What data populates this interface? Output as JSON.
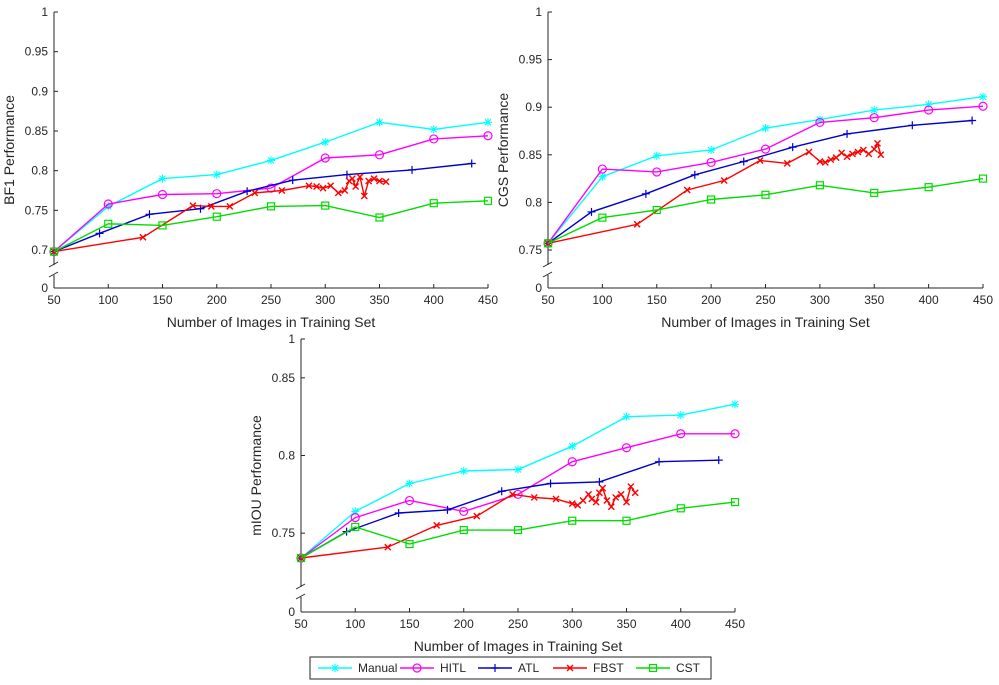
{
  "chart_data": [
    {
      "id": "bf1",
      "type": "line",
      "xlabel": "Number of Images in Training Set",
      "ylabel": "BF1 Performance",
      "xlim": [
        50,
        450
      ],
      "ylim": [
        0.7,
        1
      ],
      "axis_break": true,
      "x_ticks": [
        50,
        100,
        150,
        200,
        250,
        300,
        350,
        400,
        450
      ],
      "y_ticks": [
        0.7,
        0.75,
        0.8,
        0.85,
        0.9,
        0.95,
        1
      ],
      "y_tick_labels": [
        "0.7",
        "0.75",
        "0.8",
        "0.85",
        "0.9",
        "0.95",
        "1"
      ],
      "zero_label": "0",
      "series": [
        {
          "name": "Manual",
          "x": [
            50,
            100,
            150,
            200,
            250,
            300,
            350,
            400,
            450
          ],
          "y": [
            0.698,
            0.755,
            0.79,
            0.795,
            0.813,
            0.836,
            0.861,
            0.852,
            0.861
          ]
        },
        {
          "name": "HITL",
          "x": [
            50,
            100,
            150,
            200,
            250,
            300,
            350,
            400,
            450
          ],
          "y": [
            0.698,
            0.758,
            0.77,
            0.771,
            0.778,
            0.816,
            0.82,
            0.84,
            0.844
          ]
        },
        {
          "name": "ATL",
          "x": [
            50,
            92,
            138,
            185,
            228,
            270,
            320,
            380,
            435
          ],
          "y": [
            0.698,
            0.721,
            0.745,
            0.752,
            0.774,
            0.788,
            0.795,
            0.801,
            0.809
          ]
        },
        {
          "name": "FBST",
          "x": [
            50,
            132,
            178,
            195,
            212,
            235,
            260,
            285,
            292,
            298,
            305,
            312,
            318,
            322,
            325,
            328,
            332,
            336,
            340,
            345,
            350,
            356
          ],
          "y": [
            0.698,
            0.716,
            0.756,
            0.755,
            0.755,
            0.772,
            0.775,
            0.781,
            0.78,
            0.778,
            0.781,
            0.772,
            0.775,
            0.787,
            0.79,
            0.78,
            0.792,
            0.768,
            0.787,
            0.79,
            0.787,
            0.786
          ]
        },
        {
          "name": "CST",
          "x": [
            50,
            100,
            150,
            200,
            250,
            300,
            350,
            400,
            450
          ],
          "y": [
            0.698,
            0.733,
            0.731,
            0.742,
            0.755,
            0.756,
            0.741,
            0.759,
            0.762
          ]
        }
      ]
    },
    {
      "id": "cgs",
      "type": "line",
      "xlabel": "Number of Images in Training Set",
      "ylabel": "CGS Performance",
      "xlim": [
        50,
        450
      ],
      "ylim": [
        0.75,
        1
      ],
      "axis_break": true,
      "x_ticks": [
        50,
        100,
        150,
        200,
        250,
        300,
        350,
        400,
        450
      ],
      "y_ticks": [
        0.75,
        0.8,
        0.85,
        0.9,
        0.95,
        1
      ],
      "y_tick_labels": [
        "0.75",
        "0.8",
        "0.85",
        "0.9",
        "0.95",
        "1"
      ],
      "zero_label": "0",
      "series": [
        {
          "name": "Manual",
          "x": [
            50,
            100,
            150,
            200,
            250,
            300,
            350,
            400,
            450
          ],
          "y": [
            0.757,
            0.827,
            0.849,
            0.855,
            0.878,
            0.887,
            0.897,
            0.903,
            0.911
          ]
        },
        {
          "name": "HITL",
          "x": [
            50,
            100,
            150,
            200,
            250,
            300,
            350,
            400,
            450
          ],
          "y": [
            0.757,
            0.835,
            0.832,
            0.842,
            0.856,
            0.884,
            0.889,
            0.897,
            0.901
          ]
        },
        {
          "name": "ATL",
          "x": [
            50,
            90,
            140,
            185,
            230,
            275,
            325,
            385,
            440
          ],
          "y": [
            0.757,
            0.79,
            0.809,
            0.829,
            0.843,
            0.858,
            0.872,
            0.881,
            0.886
          ]
        },
        {
          "name": "FBST",
          "x": [
            50,
            132,
            178,
            212,
            245,
            270,
            290,
            300,
            305,
            310,
            315,
            320,
            325,
            330,
            335,
            340,
            345,
            350,
            353,
            356
          ],
          "y": [
            0.757,
            0.777,
            0.813,
            0.823,
            0.844,
            0.841,
            0.853,
            0.843,
            0.842,
            0.845,
            0.847,
            0.852,
            0.848,
            0.851,
            0.853,
            0.855,
            0.851,
            0.856,
            0.862,
            0.85
          ]
        },
        {
          "name": "CST",
          "x": [
            50,
            100,
            150,
            200,
            250,
            300,
            350,
            400,
            450
          ],
          "y": [
            0.757,
            0.784,
            0.792,
            0.803,
            0.808,
            0.818,
            0.81,
            0.816,
            0.825
          ]
        }
      ]
    },
    {
      "id": "miou",
      "type": "line",
      "xlabel": "Number of Images in Training Set",
      "ylabel": "mIOU Performance",
      "xlim": [
        50,
        450
      ],
      "ylim": [
        0.725,
        0.875
      ],
      "axis_break": true,
      "x_ticks": [
        50,
        100,
        150,
        200,
        250,
        300,
        350,
        400,
        450
      ],
      "y_ticks": [
        0.75,
        0.8,
        0.85
      ],
      "y_tick_labels": [
        "0.75",
        "0.8",
        "0.85"
      ],
      "top_label": "1",
      "zero_label": "0",
      "series": [
        {
          "name": "Manual",
          "x": [
            50,
            100,
            150,
            200,
            250,
            300,
            350,
            400,
            450
          ],
          "y": [
            0.734,
            0.764,
            0.782,
            0.79,
            0.791,
            0.806,
            0.825,
            0.826,
            0.833
          ]
        },
        {
          "name": "HITL",
          "x": [
            50,
            100,
            150,
            200,
            250,
            300,
            350,
            400,
            450
          ],
          "y": [
            0.734,
            0.76,
            0.771,
            0.764,
            0.775,
            0.796,
            0.805,
            0.814,
            0.814
          ]
        },
        {
          "name": "ATL",
          "x": [
            50,
            92,
            140,
            185,
            235,
            280,
            325,
            380,
            435
          ],
          "y": [
            0.734,
            0.751,
            0.763,
            0.765,
            0.777,
            0.782,
            0.783,
            0.796,
            0.797
          ]
        },
        {
          "name": "FBST",
          "x": [
            50,
            130,
            175,
            212,
            245,
            265,
            285,
            300,
            305,
            310,
            315,
            318,
            322,
            325,
            328,
            332,
            336,
            340,
            345,
            350,
            354,
            358
          ],
          "y": [
            0.734,
            0.741,
            0.755,
            0.761,
            0.775,
            0.773,
            0.772,
            0.769,
            0.768,
            0.771,
            0.775,
            0.772,
            0.77,
            0.776,
            0.779,
            0.771,
            0.767,
            0.773,
            0.775,
            0.77,
            0.78,
            0.776
          ]
        },
        {
          "name": "CST",
          "x": [
            50,
            100,
            150,
            200,
            250,
            300,
            350,
            400,
            450
          ],
          "y": [
            0.734,
            0.754,
            0.743,
            0.752,
            0.752,
            0.758,
            0.758,
            0.766,
            0.77
          ]
        }
      ]
    }
  ],
  "legend": {
    "position": "bottom-center",
    "entries": [
      {
        "name": "Manual",
        "color": "#00FFFF",
        "marker": "asterisk"
      },
      {
        "name": "HITL",
        "color": "#FF00FF",
        "marker": "circle"
      },
      {
        "name": "ATL",
        "color": "#0000CD",
        "marker": "plus"
      },
      {
        "name": "FBST",
        "color": "#FF0000",
        "marker": "x"
      },
      {
        "name": "CST",
        "color": "#00DD00",
        "marker": "square"
      }
    ]
  },
  "colors": {
    "axis": "#262626",
    "background": "#ffffff"
  }
}
